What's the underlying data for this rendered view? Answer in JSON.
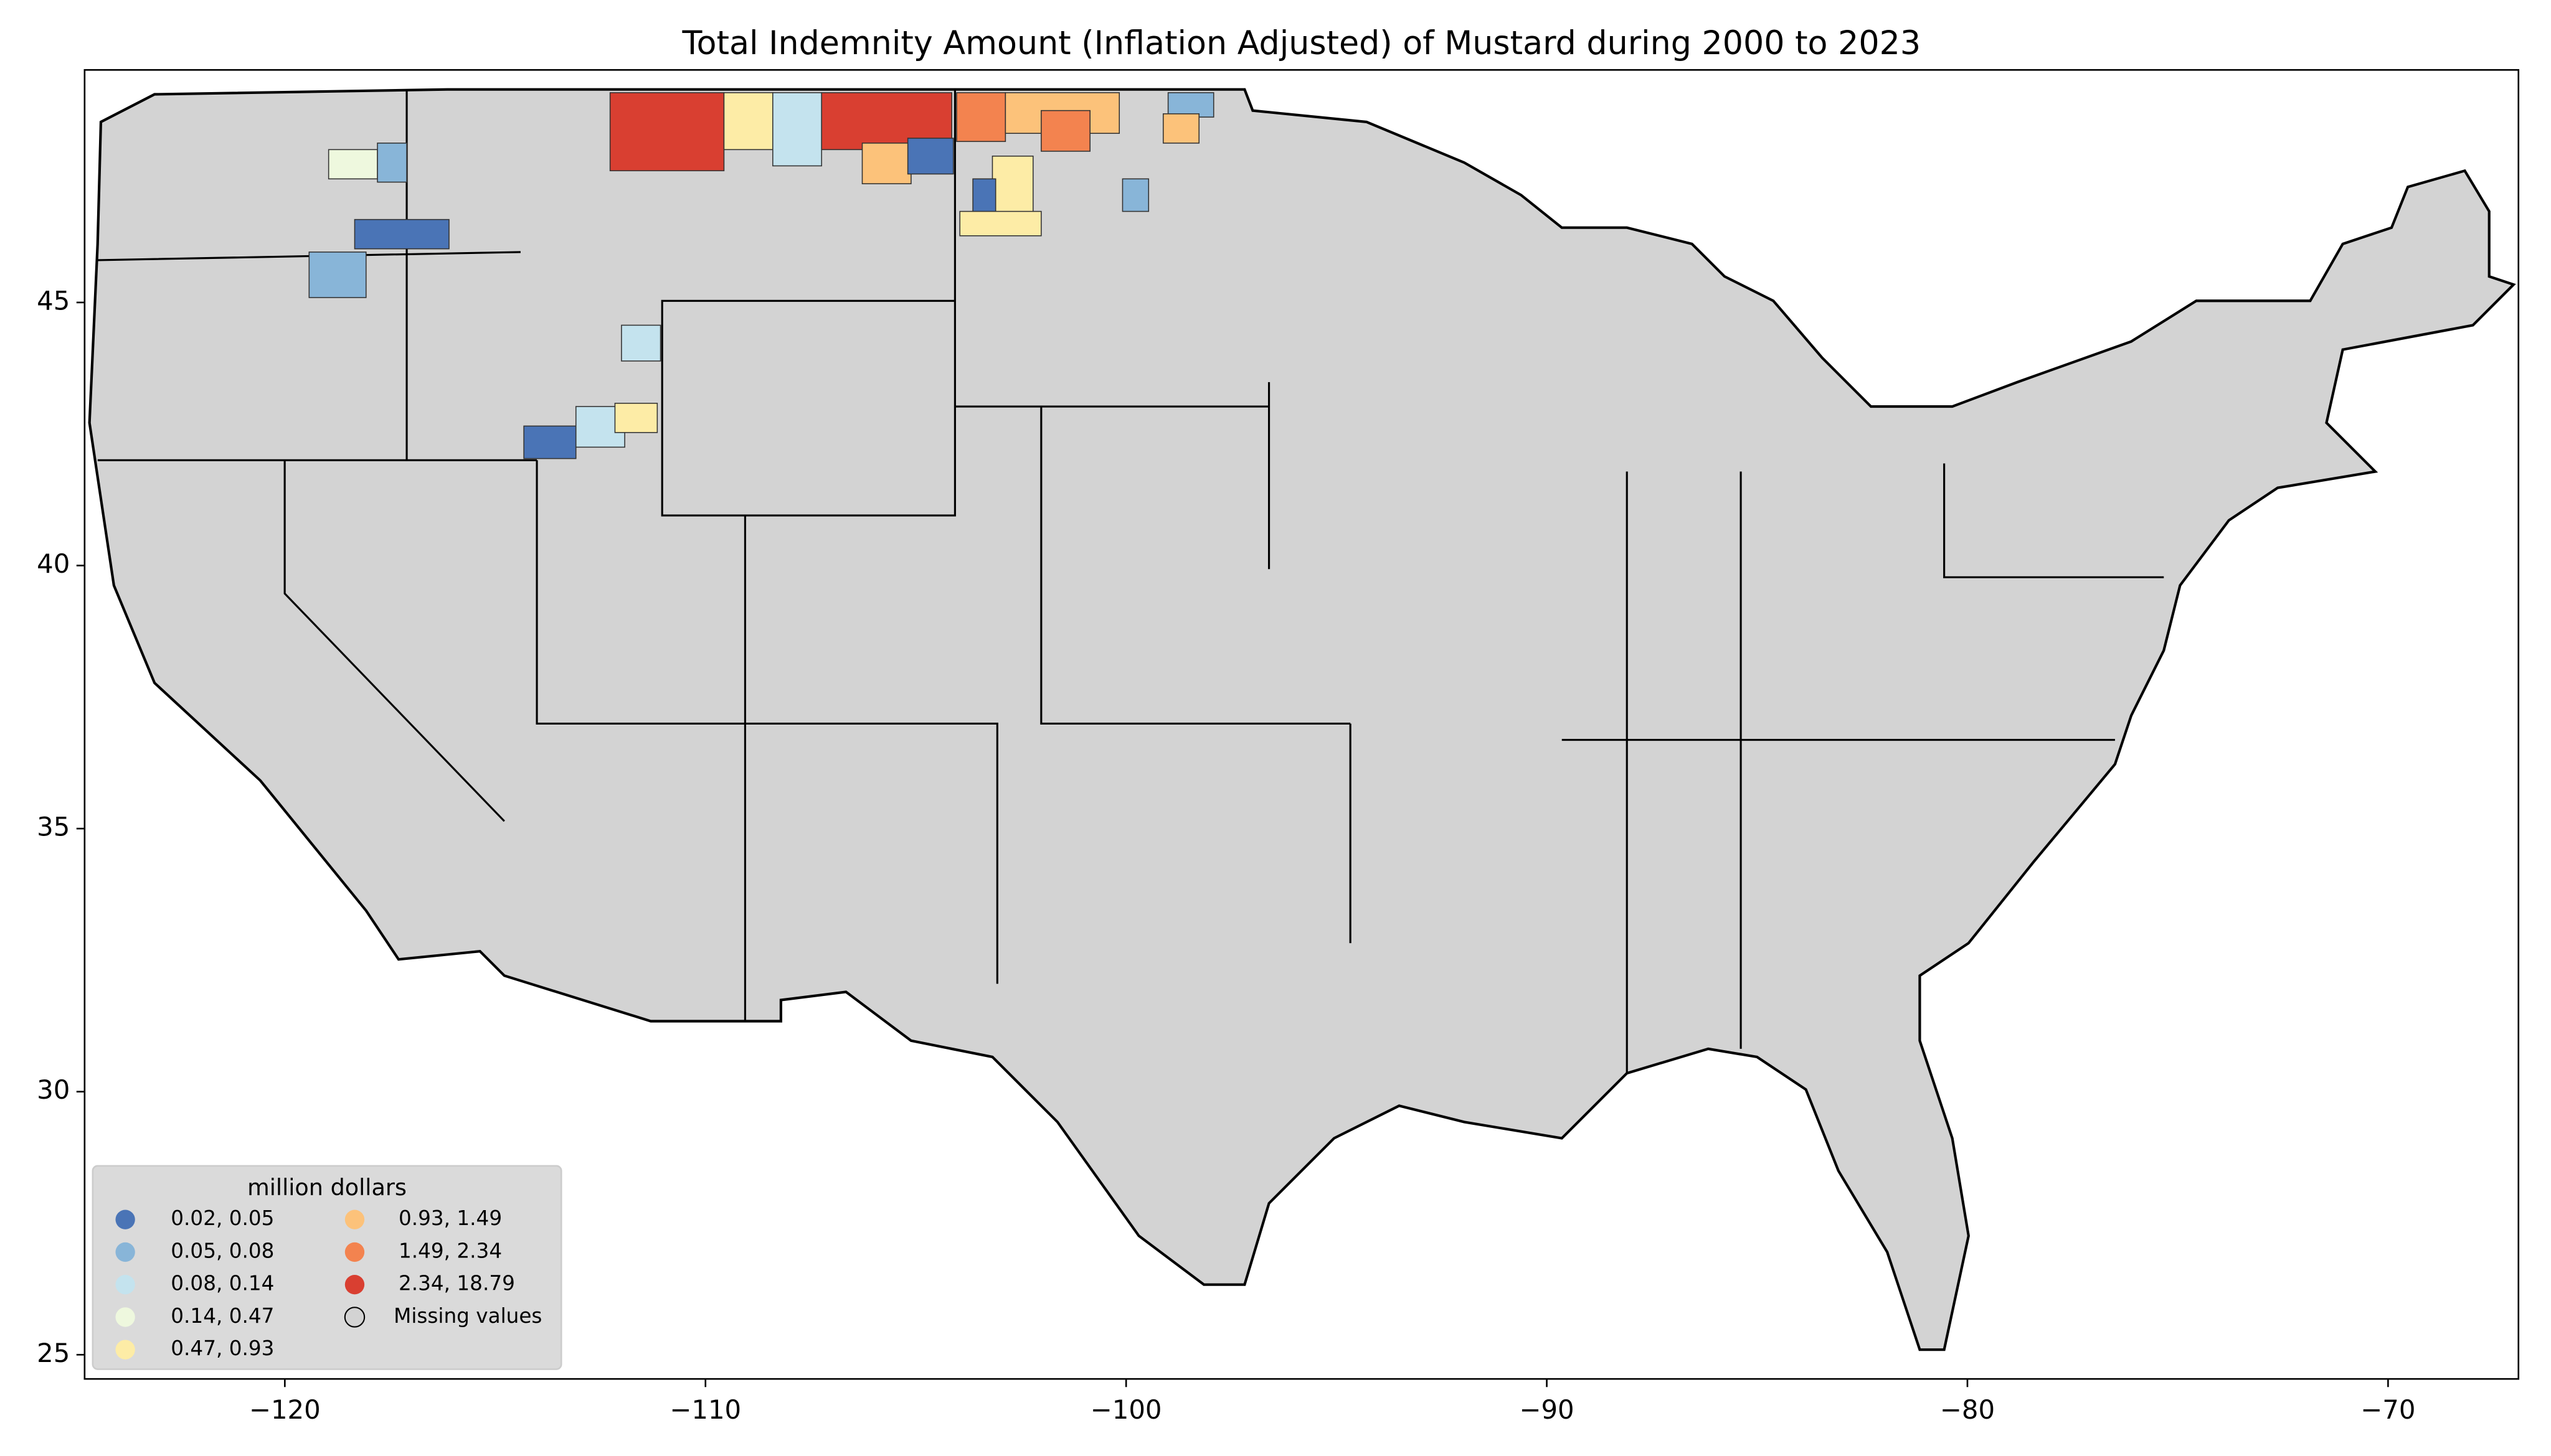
{
  "chart_data": {
    "type": "choropleth-map",
    "title": "Total Indemnity Amount  (Inflation Adjusted) of Mustard during 2000 to 2023",
    "xlim": [
      -124.76,
      -66.9
    ],
    "ylim": [
      24.54,
      49.42
    ],
    "xticks": [
      {
        "value": -120,
        "label": "−120"
      },
      {
        "value": -110,
        "label": "−110"
      },
      {
        "value": -100,
        "label": "−100"
      },
      {
        "value": -90,
        "label": "−90"
      },
      {
        "value": -80,
        "label": "−80"
      },
      {
        "value": -70,
        "label": "−70"
      }
    ],
    "yticks": [
      25,
      30,
      35,
      40,
      45
    ],
    "legend": {
      "title": "million dollars",
      "position": "lower left",
      "items": [
        {
          "label": "0.02,  0.05",
          "color": "#4a74b6"
        },
        {
          "label": "0.05,  0.08",
          "color": "#88b5d8"
        },
        {
          "label": "0.08,  0.14",
          "color": "#c4e3ee"
        },
        {
          "label": "0.14,  0.47",
          "color": "#eef8de"
        },
        {
          "label": "0.47,  0.93",
          "color": "#fdeca6"
        },
        {
          "label": "0.93,  1.49",
          "color": "#fcc27a"
        },
        {
          "label": "1.49,  2.34",
          "color": "#f3834f"
        },
        {
          "label": "2.34, 18.79",
          "color": "#d93f31"
        }
      ],
      "missing": {
        "label": "Missing values",
        "color": "#d3d3d3"
      }
    }
  }
}
